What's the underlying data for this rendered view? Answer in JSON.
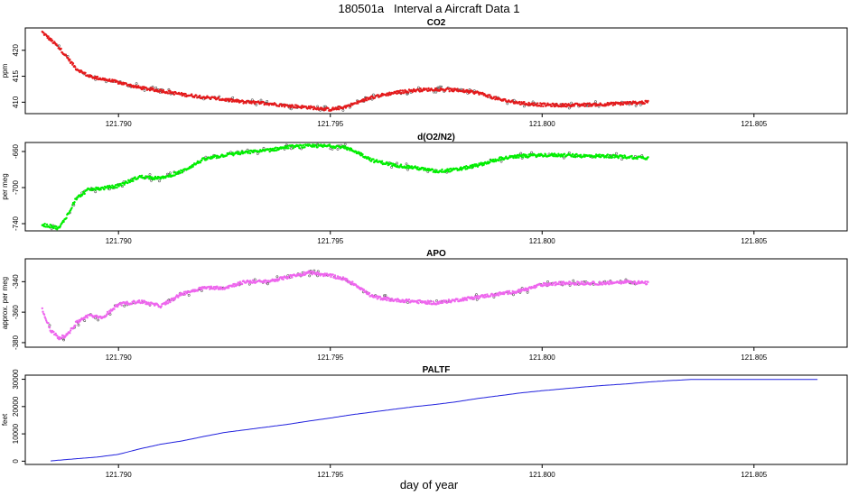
{
  "page_title": "180501a   Interval a Aircraft Data 1",
  "x_axis_label": "day of year",
  "chart_data": [
    {
      "type": "scatter",
      "title": "CO2",
      "ylabel": "ppm",
      "xlim": [
        121.7878,
        121.8072
      ],
      "ylim": [
        407.8,
        424.3
      ],
      "yticks": [
        410,
        415,
        420
      ],
      "xticks": [
        121.79,
        121.795,
        121.8,
        121.805
      ],
      "xticklabels": [
        "121.790",
        "121.795",
        "121.800",
        "121.805"
      ],
      "grid": false,
      "point_color": "#e41a1c",
      "open_point_color": "#555555",
      "series": [
        {
          "x": [
            121.7882,
            121.7884,
            121.7886,
            121.7888,
            121.789,
            121.7893,
            121.7896,
            121.79,
            121.7905,
            121.791,
            121.7915,
            121.792,
            121.7925,
            121.793,
            121.7935,
            121.794,
            121.7945,
            121.795,
            121.7953,
            121.7956,
            121.796,
            121.7965,
            121.797,
            121.7975,
            121.798,
            121.7985,
            121.799,
            121.7995,
            121.8,
            121.8005,
            121.801,
            121.8015,
            121.802,
            121.8025
          ],
          "y": [
            423.5,
            422.0,
            420.5,
            418.5,
            416.5,
            415.0,
            414.5,
            413.8,
            412.8,
            412.2,
            411.5,
            411.0,
            410.5,
            410.0,
            409.8,
            409.3,
            409.0,
            408.6,
            409.0,
            409.8,
            411.0,
            411.8,
            412.3,
            412.5,
            412.3,
            411.8,
            410.5,
            409.8,
            409.5,
            409.4,
            409.5,
            409.6,
            409.8,
            410.0
          ]
        }
      ]
    },
    {
      "type": "scatter",
      "title": "d(O2/N2)",
      "ylabel": "per meg",
      "xlim": [
        121.7878,
        121.8072
      ],
      "ylim": [
        -748,
        -650
      ],
      "yticks": [
        -740,
        -700,
        -660
      ],
      "xticks": [
        121.79,
        121.795,
        121.8,
        121.805
      ],
      "xticklabels": [
        "121.790",
        "121.795",
        "121.800",
        "121.805"
      ],
      "grid": false,
      "point_color": "#00ee00",
      "open_point_color": "#555555",
      "series": [
        {
          "x": [
            121.7882,
            121.7884,
            121.7886,
            121.7888,
            121.789,
            121.7893,
            121.7896,
            121.79,
            121.7905,
            121.791,
            121.7915,
            121.792,
            121.7925,
            121.793,
            121.7935,
            121.794,
            121.7945,
            121.795,
            121.7953,
            121.7956,
            121.796,
            121.7965,
            121.797,
            121.7975,
            121.798,
            121.7985,
            121.799,
            121.7995,
            121.8,
            121.8005,
            121.801,
            121.8015,
            121.802,
            121.8025
          ],
          "y": [
            -741,
            -743,
            -745,
            -730,
            -712,
            -702,
            -701,
            -698,
            -688,
            -690,
            -682,
            -669,
            -664,
            -661,
            -659,
            -655,
            -654,
            -654,
            -655,
            -660,
            -670,
            -675,
            -678,
            -682,
            -680,
            -675,
            -668,
            -665,
            -664,
            -664,
            -665,
            -665,
            -666,
            -667
          ]
        }
      ]
    },
    {
      "type": "scatter",
      "title": "APO",
      "ylabel": "approx. per meg",
      "xlim": [
        121.7878,
        121.8072
      ],
      "ylim": [
        -383,
        -325
      ],
      "yticks": [
        -380,
        -360,
        -340
      ],
      "xticks": [
        121.79,
        121.795,
        121.8,
        121.805
      ],
      "xticklabels": [
        "121.790",
        "121.795",
        "121.800",
        "121.805"
      ],
      "grid": false,
      "point_color": "#ee66ee",
      "open_point_color": "#555555",
      "series": [
        {
          "x": [
            121.7882,
            121.7884,
            121.7886,
            121.7888,
            121.789,
            121.7893,
            121.7896,
            121.79,
            121.7905,
            121.791,
            121.7915,
            121.792,
            121.7925,
            121.793,
            121.7935,
            121.794,
            121.7945,
            121.795,
            121.7953,
            121.7956,
            121.796,
            121.7965,
            121.797,
            121.7975,
            121.798,
            121.7985,
            121.799,
            121.7995,
            121.8,
            121.8005,
            121.801,
            121.8015,
            121.802,
            121.8025
          ],
          "y": [
            -358,
            -372,
            -377,
            -375,
            -367,
            -362,
            -364,
            -355,
            -353,
            -356,
            -348,
            -344,
            -344,
            -340,
            -340,
            -337,
            -334,
            -336,
            -338,
            -342,
            -350,
            -352,
            -353,
            -354,
            -352,
            -350,
            -348,
            -346,
            -342,
            -341,
            -341,
            -341,
            -340,
            -341
          ]
        }
      ]
    },
    {
      "type": "line",
      "title": "PALTF",
      "ylabel": "feet",
      "xlim": [
        121.7878,
        121.8072
      ],
      "ylim": [
        -1200,
        31500
      ],
      "yticks": [
        0,
        10000,
        20000,
        30000
      ],
      "xticks": [
        121.79,
        121.795,
        121.8,
        121.805
      ],
      "xticklabels": [
        "121.790",
        "121.795",
        "121.800",
        "121.805"
      ],
      "grid": false,
      "line_color": "#2222dd",
      "series": [
        {
          "x": [
            121.7884,
            121.789,
            121.7895,
            121.79,
            121.7905,
            121.791,
            121.7915,
            121.792,
            121.7925,
            121.793,
            121.7935,
            121.794,
            121.7945,
            121.795,
            121.7955,
            121.796,
            121.7965,
            121.797,
            121.7975,
            121.798,
            121.7985,
            121.799,
            121.7995,
            121.8,
            121.8005,
            121.801,
            121.8015,
            121.802,
            121.8025,
            121.803,
            121.8035,
            121.804,
            121.805,
            121.806,
            121.8065
          ],
          "y": [
            100,
            900,
            1500,
            2500,
            4500,
            6200,
            7400,
            9000,
            10500,
            11500,
            12500,
            13500,
            14700,
            15800,
            17000,
            18000,
            19000,
            20000,
            20800,
            21800,
            23000,
            24000,
            25000,
            25800,
            26500,
            27200,
            27800,
            28300,
            29000,
            29500,
            29900,
            29900,
            29900,
            29900,
            29900
          ]
        }
      ]
    }
  ]
}
